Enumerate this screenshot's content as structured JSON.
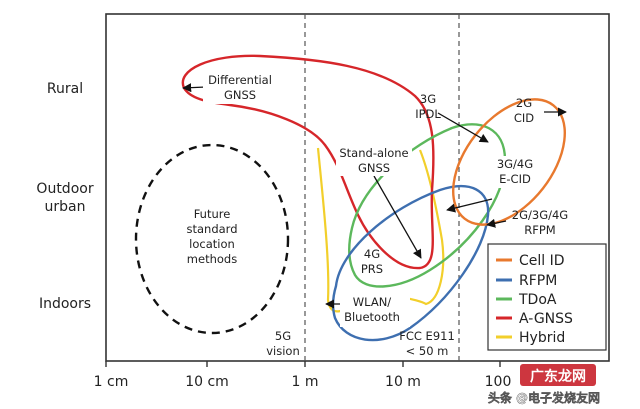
{
  "y_labels": {
    "rural": "Rural",
    "outdoor_line1": "Outdoor",
    "outdoor_line2": "urban",
    "indoors": "Indoors"
  },
  "x_ticks": [
    "1 cm",
    "10 cm",
    "1 m",
    "10 m",
    "100"
  ],
  "annotations": {
    "differential_1": "Differential",
    "differential_2": "GNSS",
    "standalone_1": "Stand-alone",
    "standalone_2": "GNSS",
    "ipdl_1": "3G",
    "ipdl_2": "IPDL",
    "cid_1": "2G",
    "cid_2": "CID",
    "ecid_1": "3G/4G",
    "ecid_2": "E-CID",
    "rfpm_1": "2G/3G/4G",
    "rfpm_2": "RFPM",
    "prs_1": "4G",
    "prs_2": "PRS",
    "wlan_1": "WLAN/",
    "wlan_2": "Bluetooth",
    "future_1": "Future",
    "future_2": "standard",
    "future_3": "location",
    "future_4": "methods",
    "vision_1": "5G",
    "vision_2": "vision",
    "fcc_1": "FCC E911",
    "fcc_2": "< 50 m"
  },
  "legend": [
    {
      "label": "Cell ID",
      "color": "#e8792e"
    },
    {
      "label": "RFPM",
      "color": "#3e6fb0"
    },
    {
      "label": "TDoA",
      "color": "#5cb85c"
    },
    {
      "label": "A-GNSS",
      "color": "#d6262a"
    },
    {
      "label": "Hybrid",
      "color": "#f2cf2b"
    }
  ],
  "watermark": "头条 @电子发烧友网",
  "watermark_badge": "广东龙网"
}
